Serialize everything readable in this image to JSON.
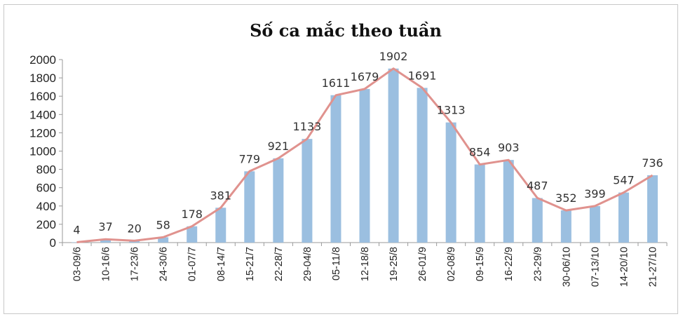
{
  "chart_data": {
    "type": "bar",
    "title": "Số ca mắc theo tuần",
    "xlabel": "",
    "ylabel": "",
    "ylim": [
      0,
      2000
    ],
    "yticks": [
      0,
      200,
      400,
      600,
      800,
      1000,
      1200,
      1400,
      1600,
      1800,
      2000
    ],
    "grid": false,
    "legend": "none",
    "categories": [
      "03-09/6",
      "10-16/6",
      "17-23/6",
      "24-30/6",
      "01-07/7",
      "08-14/7",
      "15-21/7",
      "22-28/7",
      "29-04/8",
      "05-11/8",
      "12-18/8",
      "19-25/8",
      "26-01/9",
      "02-08/9",
      "09-15/9",
      "16-22/9",
      "23-29/9",
      "30-06/10",
      "07-13/10",
      "14-20/10",
      "21-27/10"
    ],
    "series": [
      {
        "type": "bar",
        "values": [
          4,
          37,
          20,
          58,
          178,
          381,
          779,
          921,
          1133,
          1611,
          1679,
          1902,
          1691,
          1313,
          854,
          903,
          487,
          352,
          399,
          547,
          736
        ],
        "color": "#9bbfe0"
      },
      {
        "type": "line",
        "values": [
          4,
          37,
          20,
          58,
          178,
          381,
          779,
          921,
          1133,
          1611,
          1679,
          1902,
          1691,
          1313,
          854,
          903,
          487,
          352,
          399,
          547,
          736
        ],
        "color": "#e0928e"
      }
    ],
    "data_labels": [
      "4",
      "37",
      "20",
      "58",
      "178",
      "381",
      "779",
      "921",
      "1133",
      "1611",
      "1679",
      "1902",
      "1691",
      "1313",
      "854",
      "903",
      "487",
      "352",
      "399",
      "547",
      "736"
    ]
  }
}
